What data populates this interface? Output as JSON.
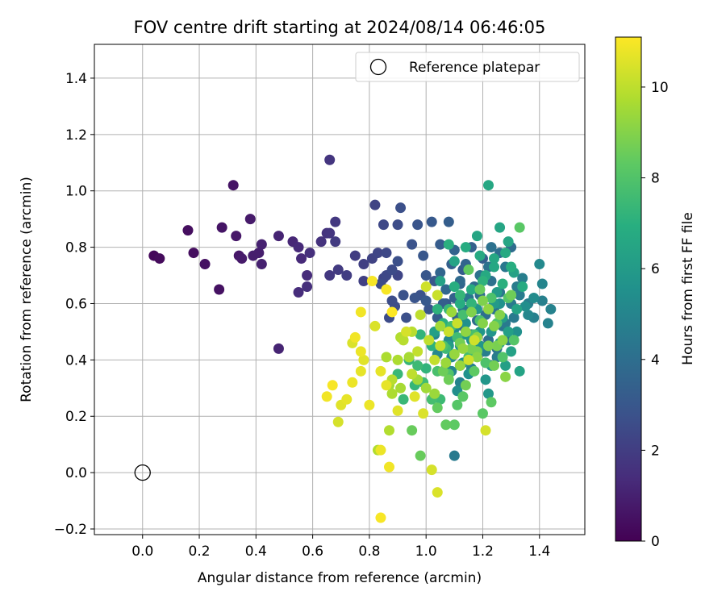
{
  "chart_data": {
    "type": "scatter",
    "title": "FOV centre drift starting at 2024/08/14 06:46:05",
    "xlabel": "Angular distance from reference (arcmin)",
    "ylabel": "Rotation from reference (arcmin)",
    "xlim": [
      -0.17,
      1.56
    ],
    "ylim": [
      -0.22,
      1.52
    ],
    "xticks": [
      0.0,
      0.2,
      0.4,
      0.6,
      0.8,
      1.0,
      1.2,
      1.4
    ],
    "xtick_labels": [
      "0.0",
      "0.2",
      "0.4",
      "0.6",
      "0.8",
      "1.0",
      "1.2",
      "1.4"
    ],
    "yticks": [
      -0.2,
      0.0,
      0.2,
      0.4,
      0.6,
      0.8,
      1.0,
      1.2,
      1.4
    ],
    "ytick_labels": [
      "−0.2",
      "0.0",
      "0.2",
      "0.4",
      "0.6",
      "0.8",
      "1.0",
      "1.2",
      "1.4"
    ],
    "grid": true,
    "legend": {
      "position": "top-right",
      "entries": [
        "Reference platepar"
      ]
    },
    "reference_point": {
      "name": "Reference platepar",
      "x": 0.0,
      "y": 0.0
    },
    "colorbar": {
      "label": "Hours from first FF file",
      "colormap": "viridis",
      "range": [
        0,
        11.1
      ],
      "ticks": [
        0,
        2,
        4,
        6,
        8,
        10
      ],
      "tick_labels": [
        "0",
        "2",
        "4",
        "6",
        "8",
        "10"
      ]
    },
    "points": [
      [
        0.04,
        0.77,
        0.2
      ],
      [
        0.06,
        0.76,
        0.3
      ],
      [
        0.16,
        0.86,
        0.4
      ],
      [
        0.18,
        0.78,
        0.4
      ],
      [
        0.22,
        0.74,
        0.5
      ],
      [
        0.27,
        0.65,
        0.5
      ],
      [
        0.28,
        0.87,
        0.6
      ],
      [
        0.32,
        1.02,
        0.6
      ],
      [
        0.33,
        0.84,
        0.7
      ],
      [
        0.34,
        0.77,
        0.7
      ],
      [
        0.35,
        0.76,
        0.8
      ],
      [
        0.38,
        0.9,
        0.8
      ],
      [
        0.39,
        0.77,
        0.9
      ],
      [
        0.41,
        0.78,
        0.9
      ],
      [
        0.42,
        0.81,
        1.0
      ],
      [
        0.42,
        0.74,
        1.0
      ],
      [
        0.48,
        0.44,
        1.1
      ],
      [
        0.48,
        0.84,
        1.1
      ],
      [
        0.53,
        0.82,
        1.2
      ],
      [
        0.55,
        0.8,
        1.3
      ],
      [
        0.56,
        0.76,
        1.3
      ],
      [
        0.55,
        0.64,
        1.4
      ],
      [
        0.58,
        0.7,
        1.4
      ],
      [
        0.58,
        0.66,
        1.5
      ],
      [
        0.59,
        0.78,
        1.5
      ],
      [
        0.63,
        0.82,
        1.6
      ],
      [
        0.65,
        0.85,
        1.6
      ],
      [
        0.66,
        1.11,
        1.7
      ],
      [
        0.66,
        0.85,
        1.7
      ],
      [
        0.66,
        0.7,
        1.8
      ],
      [
        0.68,
        0.89,
        1.8
      ],
      [
        0.68,
        0.82,
        1.9
      ],
      [
        0.69,
        0.72,
        1.9
      ],
      [
        0.72,
        0.7,
        2.0
      ],
      [
        0.75,
        0.77,
        2.0
      ],
      [
        0.78,
        0.74,
        2.1
      ],
      [
        0.78,
        0.68,
        2.1
      ],
      [
        0.81,
        0.76,
        2.2
      ],
      [
        0.82,
        0.95,
        2.2
      ],
      [
        0.83,
        0.78,
        2.3
      ],
      [
        0.85,
        0.69,
        2.3
      ],
      [
        0.85,
        0.88,
        2.4
      ],
      [
        0.86,
        0.78,
        2.4
      ],
      [
        0.87,
        0.55,
        2.5
      ],
      [
        0.88,
        0.72,
        2.5
      ],
      [
        0.89,
        0.59,
        2.6
      ],
      [
        0.9,
        0.88,
        2.6
      ],
      [
        0.9,
        0.75,
        2.7
      ],
      [
        0.91,
        0.94,
        2.7
      ],
      [
        0.92,
        0.63,
        2.8
      ],
      [
        0.95,
        0.81,
        2.8
      ],
      [
        0.96,
        0.62,
        2.9
      ],
      [
        0.97,
        0.88,
        2.9
      ],
      [
        0.99,
        0.77,
        3.0
      ],
      [
        1.0,
        0.7,
        3.0
      ],
      [
        1.0,
        0.61,
        3.1
      ],
      [
        1.02,
        0.89,
        3.1
      ],
      [
        1.04,
        0.55,
        3.2
      ],
      [
        1.05,
        0.81,
        3.2
      ],
      [
        1.06,
        0.6,
        3.3
      ],
      [
        1.08,
        0.89,
        3.3
      ],
      [
        1.09,
        0.74,
        3.4
      ],
      [
        1.1,
        0.62,
        3.4
      ],
      [
        1.11,
        0.55,
        3.5
      ],
      [
        1.12,
        0.67,
        3.5
      ],
      [
        1.13,
        0.52,
        3.6
      ],
      [
        1.14,
        0.74,
        3.6
      ],
      [
        1.15,
        0.58,
        3.7
      ],
      [
        1.16,
        0.49,
        3.7
      ],
      [
        1.17,
        0.66,
        3.8
      ],
      [
        1.18,
        0.54,
        3.8
      ],
      [
        1.19,
        0.63,
        3.9
      ],
      [
        1.2,
        0.43,
        3.9
      ],
      [
        1.21,
        0.56,
        4.0
      ],
      [
        1.22,
        0.47,
        4.0
      ],
      [
        1.23,
        0.68,
        4.1
      ],
      [
        1.23,
        0.8,
        4.1
      ],
      [
        1.24,
        0.58,
        4.2
      ],
      [
        1.25,
        0.44,
        4.2
      ],
      [
        1.26,
        0.64,
        4.3
      ],
      [
        1.27,
        0.52,
        4.3
      ],
      [
        1.28,
        0.73,
        4.4
      ],
      [
        1.29,
        0.47,
        4.4
      ],
      [
        1.3,
        0.6,
        4.5
      ],
      [
        1.31,
        0.55,
        4.5
      ],
      [
        1.32,
        0.66,
        4.6
      ],
      [
        1.33,
        0.63,
        4.6
      ],
      [
        1.34,
        0.69,
        4.7
      ],
      [
        1.36,
        0.6,
        4.7
      ],
      [
        1.38,
        0.55,
        4.8
      ],
      [
        1.41,
        0.61,
        4.8
      ],
      [
        1.43,
        0.53,
        4.9
      ],
      [
        1.44,
        0.58,
        4.9
      ],
      [
        1.41,
        0.67,
        5.0
      ],
      [
        1.1,
        0.06,
        4.5
      ],
      [
        1.03,
        0.49,
        5.0
      ],
      [
        1.04,
        0.42,
        5.1
      ],
      [
        1.06,
        0.52,
        5.1
      ],
      [
        1.07,
        0.37,
        5.2
      ],
      [
        1.08,
        0.47,
        5.2
      ],
      [
        1.09,
        0.41,
        5.3
      ],
      [
        1.1,
        0.51,
        5.3
      ],
      [
        1.11,
        0.29,
        5.4
      ],
      [
        1.12,
        0.45,
        5.4
      ],
      [
        1.13,
        0.39,
        5.5
      ],
      [
        1.14,
        0.53,
        5.5
      ],
      [
        1.15,
        0.35,
        5.6
      ],
      [
        1.16,
        0.47,
        5.6
      ],
      [
        1.17,
        0.42,
        5.7
      ],
      [
        1.18,
        0.58,
        5.7
      ],
      [
        1.19,
        0.5,
        5.8
      ],
      [
        1.21,
        0.33,
        5.8
      ],
      [
        1.22,
        0.28,
        5.9
      ],
      [
        1.23,
        0.38,
        5.9
      ],
      [
        1.24,
        0.6,
        6.0
      ],
      [
        1.25,
        0.64,
        6.0
      ],
      [
        1.26,
        0.46,
        6.1
      ],
      [
        1.27,
        0.55,
        6.1
      ],
      [
        1.28,
        0.38,
        6.2
      ],
      [
        1.29,
        0.5,
        6.2
      ],
      [
        1.3,
        0.43,
        6.3
      ],
      [
        1.31,
        0.71,
        6.3
      ],
      [
        1.32,
        0.58,
        6.4
      ],
      [
        1.33,
        0.36,
        6.4
      ],
      [
        1.26,
        0.87,
        6.5
      ],
      [
        1.29,
        0.82,
        6.5
      ],
      [
        1.22,
        1.02,
        6.6
      ],
      [
        1.24,
        0.76,
        6.6
      ],
      [
        1.21,
        0.7,
        6.7
      ],
      [
        1.19,
        0.77,
        6.7
      ],
      [
        1.16,
        0.65,
        6.8
      ],
      [
        1.14,
        0.8,
        6.8
      ],
      [
        1.12,
        0.6,
        6.9
      ],
      [
        1.1,
        0.66,
        6.9
      ],
      [
        1.08,
        0.81,
        7.0
      ],
      [
        1.06,
        0.53,
        7.0
      ],
      [
        1.04,
        0.58,
        7.1
      ],
      [
        1.02,
        0.45,
        7.1
      ],
      [
        1.0,
        0.37,
        7.2
      ],
      [
        0.98,
        0.49,
        7.2
      ],
      [
        0.96,
        0.31,
        7.3
      ],
      [
        0.94,
        0.4,
        7.3
      ],
      [
        0.92,
        0.26,
        7.4
      ],
      [
        0.9,
        0.35,
        7.4
      ],
      [
        1.05,
        0.26,
        7.5
      ],
      [
        1.07,
        0.44,
        7.5
      ],
      [
        1.09,
        0.52,
        7.6
      ],
      [
        1.11,
        0.48,
        7.6
      ],
      [
        1.13,
        0.56,
        7.7
      ],
      [
        1.15,
        0.41,
        7.7
      ],
      [
        1.17,
        0.49,
        7.8
      ],
      [
        1.19,
        0.54,
        7.8
      ],
      [
        1.21,
        0.39,
        7.9
      ],
      [
        1.23,
        0.62,
        7.9
      ],
      [
        1.25,
        0.53,
        8.0
      ],
      [
        1.27,
        0.41,
        8.0
      ],
      [
        1.29,
        0.62,
        8.1
      ],
      [
        1.31,
        0.47,
        8.1
      ],
      [
        1.33,
        0.87,
        8.2
      ],
      [
        1.2,
        0.21,
        8.2
      ],
      [
        1.23,
        0.25,
        8.3
      ],
      [
        1.1,
        0.17,
        8.3
      ],
      [
        1.07,
        0.17,
        8.4
      ],
      [
        1.04,
        0.23,
        8.4
      ],
      [
        0.95,
        0.15,
        8.5
      ],
      [
        0.98,
        0.06,
        8.5
      ],
      [
        1.06,
        0.36,
        8.6
      ],
      [
        1.08,
        0.33,
        8.6
      ],
      [
        1.12,
        0.46,
        8.7
      ],
      [
        1.14,
        0.31,
        8.7
      ],
      [
        1.16,
        0.44,
        8.8
      ],
      [
        1.18,
        0.43,
        8.8
      ],
      [
        1.2,
        0.61,
        8.9
      ],
      [
        1.22,
        0.45,
        8.9
      ],
      [
        1.24,
        0.52,
        9.0
      ],
      [
        1.26,
        0.56,
        9.0
      ],
      [
        1.28,
        0.34,
        9.1
      ],
      [
        1.27,
        0.47,
        9.1
      ],
      [
        1.22,
        0.58,
        9.2
      ],
      [
        1.18,
        0.48,
        9.2
      ],
      [
        1.13,
        0.44,
        9.3
      ],
      [
        1.1,
        0.42,
        9.3
      ],
      [
        1.07,
        0.39,
        9.4
      ],
      [
        1.03,
        0.28,
        9.4
      ],
      [
        1.0,
        0.3,
        9.5
      ],
      [
        0.97,
        0.33,
        9.5
      ],
      [
        0.94,
        0.41,
        9.6
      ],
      [
        0.91,
        0.3,
        9.6
      ],
      [
        0.88,
        0.28,
        9.7
      ],
      [
        0.86,
        0.41,
        9.7
      ],
      [
        0.83,
        0.08,
        9.8
      ],
      [
        0.87,
        0.15,
        9.8
      ],
      [
        0.92,
        0.47,
        9.9
      ],
      [
        0.95,
        0.5,
        9.9
      ],
      [
        0.98,
        0.56,
        10.0
      ],
      [
        1.01,
        0.47,
        10.0
      ],
      [
        1.03,
        0.4,
        10.1
      ],
      [
        1.05,
        0.45,
        10.1
      ],
      [
        1.08,
        0.5,
        10.2
      ],
      [
        1.11,
        0.53,
        10.2
      ],
      [
        1.15,
        0.4,
        10.3
      ],
      [
        1.17,
        0.47,
        10.3
      ],
      [
        1.21,
        0.15,
        10.4
      ],
      [
        1.02,
        0.01,
        10.4
      ],
      [
        1.04,
        -0.07,
        10.5
      ],
      [
        0.99,
        0.21,
        10.5
      ],
      [
        0.96,
        0.27,
        10.6
      ],
      [
        0.9,
        0.22,
        10.6
      ],
      [
        0.86,
        0.31,
        10.7
      ],
      [
        0.84,
        0.36,
        10.7
      ],
      [
        0.8,
        0.24,
        10.8
      ],
      [
        0.77,
        0.43,
        10.8
      ],
      [
        0.75,
        0.48,
        10.9
      ],
      [
        0.77,
        0.57,
        10.9
      ],
      [
        0.81,
        0.68,
        11.0
      ],
      [
        0.86,
        0.65,
        11.0
      ],
      [
        0.88,
        0.57,
        11.1
      ],
      [
        0.84,
        0.08,
        10.8
      ],
      [
        0.87,
        0.02,
        10.9
      ],
      [
        0.84,
        -0.16,
        11.0
      ],
      [
        0.72,
        0.26,
        10.7
      ],
      [
        0.7,
        0.24,
        10.6
      ],
      [
        0.65,
        0.27,
        10.9
      ],
      [
        0.67,
        0.31,
        11.0
      ],
      [
        0.74,
        0.32,
        10.8
      ],
      [
        0.77,
        0.36,
        10.7
      ],
      [
        0.78,
        0.4,
        10.6
      ],
      [
        0.74,
        0.46,
        10.5
      ],
      [
        0.69,
        0.18,
        10.4
      ],
      [
        0.82,
        0.52,
        10.5
      ],
      [
        0.93,
        0.5,
        10.4
      ],
      [
        1.0,
        0.66,
        10.3
      ],
      [
        1.04,
        0.63,
        10.2
      ],
      [
        0.97,
        0.43,
        10.1
      ],
      [
        0.95,
        0.35,
        10.0
      ],
      [
        0.88,
        0.33,
        9.9
      ],
      [
        0.91,
        0.48,
        9.8
      ],
      [
        0.9,
        0.4,
        9.7
      ],
      [
        0.87,
        0.31,
        9.6
      ],
      [
        1.05,
        0.52,
        9.5
      ],
      [
        1.09,
        0.57,
        9.4
      ],
      [
        1.12,
        0.38,
        9.3
      ],
      [
        1.14,
        0.5,
        9.2
      ],
      [
        1.18,
        0.41,
        9.1
      ],
      [
        1.2,
        0.53,
        9.0
      ],
      [
        1.16,
        0.57,
        8.9
      ],
      [
        1.25,
        0.45,
        8.8
      ],
      [
        1.24,
        0.38,
        8.7
      ],
      [
        1.3,
        0.63,
        8.6
      ],
      [
        1.19,
        0.65,
        8.5
      ],
      [
        1.15,
        0.72,
        8.4
      ],
      [
        1.17,
        0.36,
        8.3
      ],
      [
        1.13,
        0.27,
        8.2
      ],
      [
        1.11,
        0.24,
        8.1
      ],
      [
        1.08,
        0.35,
        8.0
      ],
      [
        1.06,
        0.45,
        7.9
      ],
      [
        1.04,
        0.36,
        7.8
      ],
      [
        1.02,
        0.26,
        7.7
      ],
      [
        0.99,
        0.32,
        7.6
      ],
      [
        0.97,
        0.38,
        7.5
      ],
      [
        1.08,
        0.58,
        7.4
      ],
      [
        1.12,
        0.63,
        7.3
      ],
      [
        1.16,
        0.6,
        7.2
      ],
      [
        1.2,
        0.68,
        7.1
      ],
      [
        1.27,
        0.67,
        7.0
      ],
      [
        1.3,
        0.73,
        6.9
      ],
      [
        1.34,
        0.66,
        6.8
      ],
      [
        1.28,
        0.78,
        6.7
      ],
      [
        1.24,
        0.73,
        6.6
      ],
      [
        1.18,
        0.84,
        6.5
      ],
      [
        1.1,
        0.75,
        6.4
      ],
      [
        1.05,
        0.68,
        6.3
      ],
      [
        1.03,
        0.5,
        6.2
      ],
      [
        1.08,
        0.45,
        6.1
      ],
      [
        1.12,
        0.38,
        6.0
      ],
      [
        1.14,
        0.49,
        5.9
      ],
      [
        1.19,
        0.45,
        5.8
      ],
      [
        1.23,
        0.5,
        5.7
      ],
      [
        1.26,
        0.6,
        5.6
      ],
      [
        1.32,
        0.5,
        5.5
      ],
      [
        1.35,
        0.59,
        5.4
      ],
      [
        1.38,
        0.62,
        5.3
      ],
      [
        1.4,
        0.74,
        5.2
      ],
      [
        1.36,
        0.56,
        5.1
      ],
      [
        1.09,
        0.36,
        5.0
      ],
      [
        1.12,
        0.32,
        4.9
      ],
      [
        1.16,
        0.37,
        4.8
      ],
      [
        1.21,
        0.43,
        4.7
      ],
      [
        1.25,
        0.41,
        4.6
      ],
      [
        1.28,
        0.53,
        4.5
      ],
      [
        1.13,
        0.58,
        4.4
      ],
      [
        1.15,
        0.62,
        4.3
      ],
      [
        1.19,
        0.7,
        4.2
      ],
      [
        1.22,
        0.73,
        4.1
      ],
      [
        1.26,
        0.78,
        4.0
      ],
      [
        1.3,
        0.8,
        3.9
      ],
      [
        1.12,
        0.68,
        3.8
      ],
      [
        1.07,
        0.65,
        3.7
      ],
      [
        1.05,
        0.71,
        3.6
      ],
      [
        1.1,
        0.79,
        3.5
      ],
      [
        1.16,
        0.8,
        3.4
      ],
      [
        1.2,
        0.76,
        3.3
      ],
      [
        1.13,
        0.72,
        3.2
      ],
      [
        1.07,
        0.6,
        3.1
      ],
      [
        1.03,
        0.68,
        3.0
      ],
      [
        1.01,
        0.58,
        2.9
      ],
      [
        0.98,
        0.63,
        2.8
      ],
      [
        0.93,
        0.55,
        2.7
      ],
      [
        0.88,
        0.61,
        2.6
      ],
      [
        0.84,
        0.67,
        2.5
      ],
      [
        0.86,
        0.7,
        2.4
      ],
      [
        0.9,
        0.7,
        2.3
      ]
    ]
  }
}
